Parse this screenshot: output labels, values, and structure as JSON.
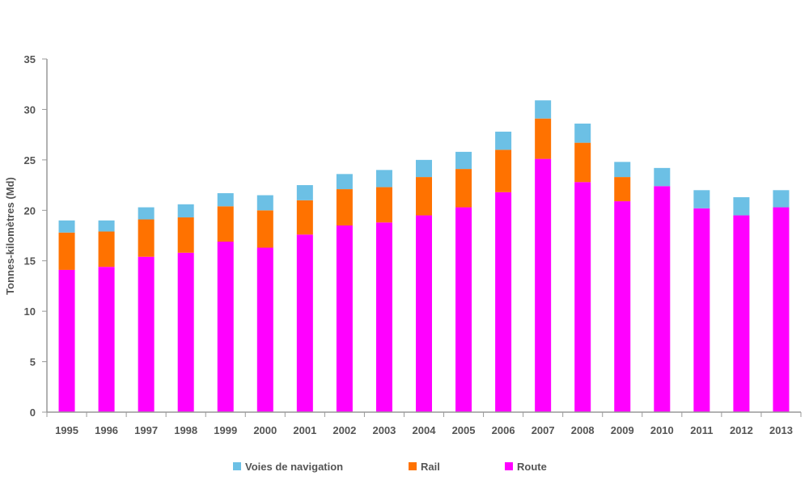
{
  "chart_data": {
    "type": "bar",
    "stacked": true,
    "categories": [
      "1995",
      "1996",
      "1997",
      "1998",
      "1999",
      "2000",
      "2001",
      "2002",
      "2003",
      "2004",
      "2005",
      "2006",
      "2007",
      "2008",
      "2009",
      "2010",
      "2011",
      "2012",
      "2013"
    ],
    "series": [
      {
        "name": "Route",
        "color": "#ff00ff",
        "values": [
          14.1,
          14.4,
          15.4,
          15.8,
          16.9,
          16.3,
          17.6,
          18.5,
          18.8,
          19.5,
          20.3,
          21.8,
          25.1,
          22.8,
          20.9,
          22.4,
          20.2,
          19.5,
          20.3
        ]
      },
      {
        "name": "Rail",
        "color": "#ff7200",
        "values": [
          3.7,
          3.5,
          3.7,
          3.5,
          3.5,
          3.7,
          3.4,
          3.6,
          3.5,
          3.8,
          3.8,
          4.2,
          4.0,
          3.9,
          2.4,
          0,
          0,
          0,
          0
        ]
      },
      {
        "name": "Voies de navigation",
        "color": "#6cc0e5",
        "values": [
          1.2,
          1.1,
          1.2,
          1.3,
          1.3,
          1.5,
          1.5,
          1.5,
          1.7,
          1.7,
          1.7,
          1.8,
          1.8,
          1.9,
          1.5,
          1.8,
          1.8,
          1.8,
          1.7
        ]
      }
    ],
    "legend_order": [
      "Voies de navigation",
      "Rail",
      "Route"
    ],
    "ylabel": "Tonnes-kilomètres (Md)",
    "xlabel": "",
    "ylim": [
      0,
      35
    ],
    "yticks": [
      0,
      5,
      10,
      15,
      20,
      25,
      30,
      35
    ],
    "grid": false,
    "legend_position": "bottom"
  }
}
